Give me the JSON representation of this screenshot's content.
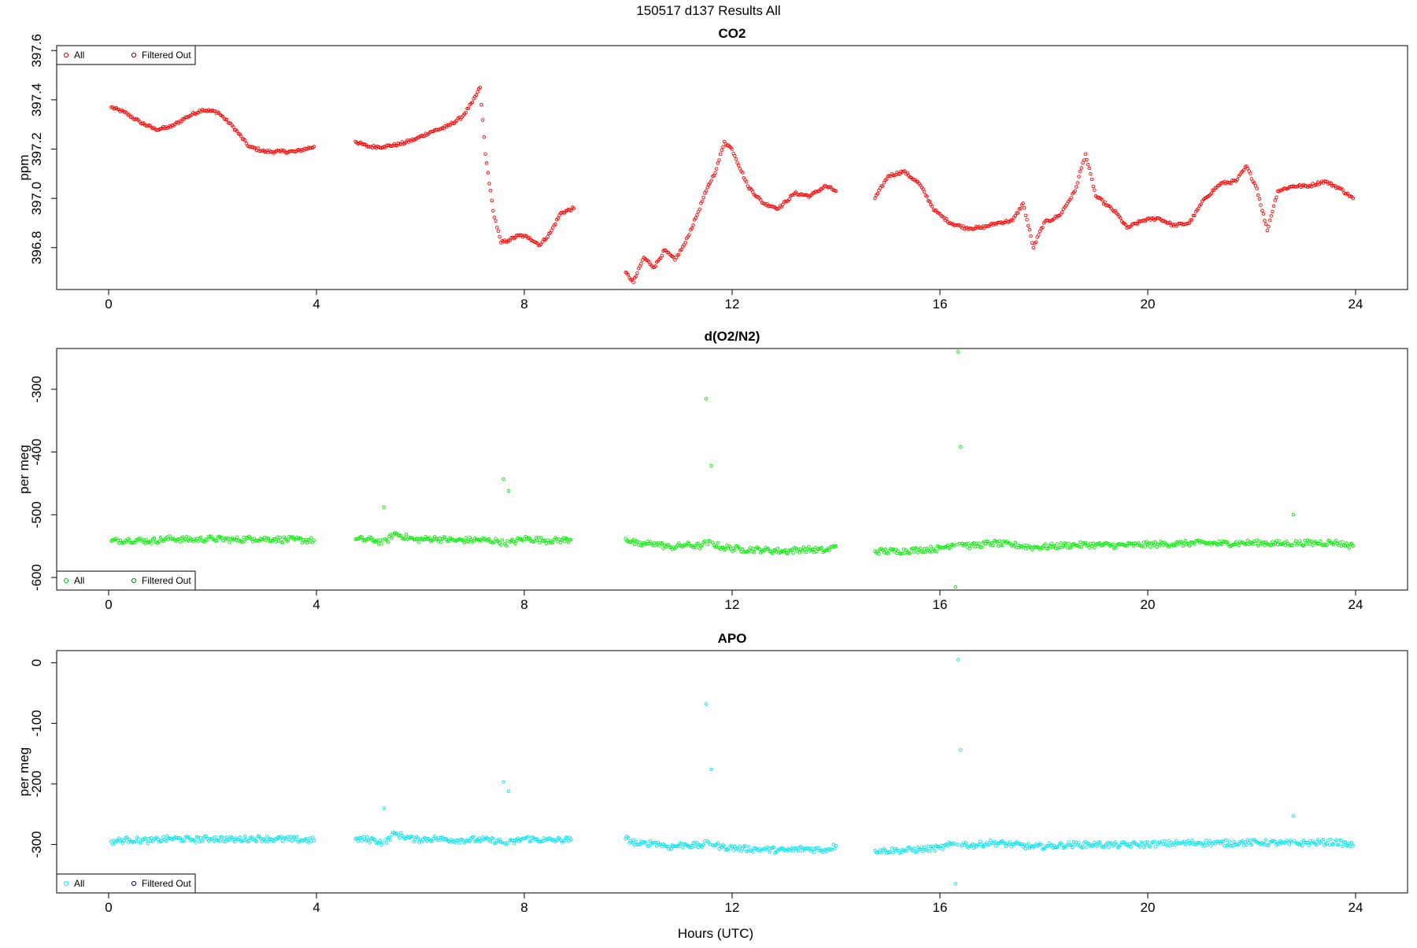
{
  "figure": {
    "title": "150517   d137   Results All",
    "xlabel": "Hours (UTC)"
  },
  "chart_data": [
    {
      "type": "scatter",
      "title": "CO2",
      "ylabel": "ppm",
      "xlim": [
        -1.0,
        25.0
      ],
      "ylim": [
        396.63,
        397.62
      ],
      "xticks": [
        0,
        4,
        8,
        12,
        16,
        20,
        24
      ],
      "yticks": [
        396.8,
        397.0,
        397.2,
        397.4,
        397.6
      ],
      "ytick_labels": [
        "396.8",
        "397.0",
        "397.2",
        "397.4",
        "397.6"
      ],
      "grid": false,
      "legend_position": "top-left",
      "legend": [
        {
          "label": "All",
          "color": "#ff0000"
        },
        {
          "label": "Filtered Out",
          "color": "#8b0000"
        }
      ],
      "series": [
        {
          "name": "All",
          "color": "#ff0000",
          "x": [
            0.05,
            0.3,
            0.6,
            0.9,
            1.2,
            1.5,
            1.8,
            2.1,
            2.4,
            2.7,
            3.0,
            3.3,
            3.6,
            3.95,
            4.75,
            5.0,
            5.3,
            5.6,
            5.9,
            6.2,
            6.5,
            6.8,
            7.0,
            7.15,
            7.25,
            7.4,
            7.55,
            7.7,
            7.9,
            8.1,
            8.3,
            8.5,
            8.7,
            8.95,
            9.95,
            10.1,
            10.3,
            10.5,
            10.7,
            10.9,
            11.1,
            11.3,
            11.5,
            11.7,
            11.85,
            12.0,
            12.3,
            12.6,
            12.9,
            13.2,
            13.5,
            13.8,
            14.0,
            14.75,
            15.0,
            15.3,
            15.6,
            15.9,
            16.2,
            16.5,
            16.8,
            17.1,
            17.4,
            17.6,
            17.8,
            18.0,
            18.3,
            18.6,
            18.8,
            19.0,
            19.4,
            19.6,
            19.9,
            20.2,
            20.5,
            20.8,
            21.1,
            21.4,
            21.7,
            21.9,
            22.1,
            22.3,
            22.5,
            22.8,
            23.1,
            23.4,
            23.7,
            23.95
          ],
          "y": [
            397.37,
            397.35,
            397.31,
            397.28,
            397.29,
            397.33,
            397.36,
            397.35,
            397.29,
            397.21,
            397.19,
            397.19,
            397.19,
            397.21,
            397.23,
            397.21,
            397.21,
            397.22,
            397.24,
            397.27,
            397.29,
            397.33,
            397.39,
            397.45,
            397.18,
            396.95,
            396.82,
            396.83,
            396.85,
            396.84,
            396.81,
            396.86,
            396.94,
            396.96,
            396.7,
            396.66,
            396.76,
            396.72,
            396.79,
            396.75,
            396.82,
            396.92,
            397.03,
            397.12,
            397.23,
            397.2,
            397.05,
            396.98,
            396.96,
            397.02,
            397.01,
            397.05,
            397.03,
            397.0,
            397.09,
            397.11,
            397.06,
            396.95,
            396.9,
            396.88,
            396.88,
            396.9,
            396.91,
            396.98,
            396.8,
            396.9,
            396.93,
            397.03,
            397.18,
            397.01,
            396.94,
            396.88,
            396.91,
            396.92,
            396.89,
            396.9,
            397.0,
            397.06,
            397.07,
            397.13,
            397.04,
            396.87,
            397.03,
            397.05,
            397.05,
            397.07,
            397.04,
            397.0
          ]
        }
      ]
    },
    {
      "type": "scatter",
      "title": "d(O2/N2)",
      "ylabel": "per meg",
      "xlim": [
        -1.0,
        25.0
      ],
      "ylim": [
        -620,
        -235
      ],
      "xticks": [
        0,
        4,
        8,
        12,
        16,
        20,
        24
      ],
      "yticks": [
        -600,
        -500,
        -400,
        -300
      ],
      "ytick_labels": [
        "-600",
        "-500",
        "-400",
        "-300"
      ],
      "grid": false,
      "legend_position": "bottom-left",
      "legend": [
        {
          "label": "All",
          "color": "#00dd00"
        },
        {
          "label": "Filtered Out",
          "color": "#008800"
        }
      ],
      "series": [
        {
          "name": "All",
          "color": "#00ee00",
          "x": [
            0.05,
            0.4,
            0.8,
            1.2,
            1.6,
            2.0,
            2.4,
            2.8,
            3.2,
            3.6,
            3.95,
            4.75,
            5.1,
            5.3,
            5.5,
            5.9,
            6.3,
            6.7,
            7.1,
            7.5,
            7.6,
            7.7,
            8.0,
            8.4,
            8.9,
            9.95,
            10.2,
            10.5,
            10.8,
            11.1,
            11.4,
            11.5,
            11.6,
            11.8,
            12.2,
            12.6,
            13.0,
            13.4,
            13.8,
            14.0,
            14.75,
            15.2,
            15.6,
            16.0,
            16.3,
            16.35,
            16.4,
            16.6,
            17.0,
            17.4,
            17.8,
            18.2,
            18.6,
            19.0,
            19.4,
            19.8,
            20.2,
            20.6,
            21.0,
            21.4,
            21.8,
            22.2,
            22.6,
            22.8,
            23.2,
            23.6,
            23.95
          ],
          "y": [
            -542,
            -540,
            -542,
            -538,
            -540,
            -538,
            -540,
            -538,
            -539,
            -540,
            -541,
            -539,
            -540,
            -488,
            -530,
            -540,
            -538,
            -541,
            -540,
            -542,
            -443,
            -462,
            -538,
            -541,
            -540,
            -538,
            -548,
            -545,
            -552,
            -548,
            -550,
            -315,
            -422,
            -552,
            -555,
            -556,
            -558,
            -555,
            -557,
            -550,
            -558,
            -558,
            -556,
            -554,
            -615,
            -240,
            -392,
            -550,
            -545,
            -548,
            -552,
            -550,
            -548,
            -548,
            -549,
            -548,
            -547,
            -546,
            -545,
            -546,
            -545,
            -545,
            -546,
            -500,
            -545,
            -544,
            -550
          ]
        }
      ]
    },
    {
      "type": "scatter",
      "title": "APO",
      "ylabel": "per meg",
      "xlim": [
        -1.0,
        25.0
      ],
      "ylim": [
        -380,
        20
      ],
      "xticks": [
        0,
        4,
        8,
        12,
        16,
        20,
        24
      ],
      "yticks": [
        -300,
        -200,
        -100,
        0
      ],
      "ytick_labels": [
        "-300",
        "-200",
        "-100",
        "0"
      ],
      "grid": false,
      "legend_position": "bottom-left",
      "legend": [
        {
          "label": "All",
          "color": "#00ffff"
        },
        {
          "label": "Filtered Out",
          "color": "#00008b"
        }
      ],
      "series": [
        {
          "name": "All",
          "color": "#00e5ee",
          "x": [
            0.05,
            0.4,
            0.8,
            1.2,
            1.6,
            2.0,
            2.4,
            2.8,
            3.2,
            3.6,
            3.95,
            4.75,
            5.1,
            5.3,
            5.5,
            5.9,
            6.3,
            6.7,
            7.1,
            7.5,
            7.6,
            7.7,
            8.0,
            8.4,
            8.9,
            9.95,
            10.2,
            10.5,
            10.8,
            11.1,
            11.4,
            11.5,
            11.6,
            11.8,
            12.2,
            12.6,
            13.0,
            13.4,
            13.8,
            14.0,
            14.75,
            15.2,
            15.6,
            16.0,
            16.3,
            16.35,
            16.4,
            16.6,
            17.0,
            17.4,
            17.8,
            18.2,
            18.6,
            19.0,
            19.4,
            19.8,
            20.2,
            20.6,
            21.0,
            21.4,
            21.8,
            22.2,
            22.6,
            22.8,
            23.2,
            23.6,
            23.95
          ],
          "y": [
            -295,
            -292,
            -294,
            -290,
            -292,
            -290,
            -292,
            -290,
            -291,
            -292,
            -293,
            -291,
            -292,
            -240,
            -282,
            -292,
            -290,
            -293,
            -292,
            -294,
            -197,
            -212,
            -290,
            -293,
            -292,
            -290,
            -300,
            -297,
            -304,
            -300,
            -302,
            -68,
            -176,
            -304,
            -307,
            -308,
            -310,
            -307,
            -309,
            -302,
            -310,
            -310,
            -308,
            -306,
            -365,
            5,
            -144,
            -302,
            -297,
            -300,
            -304,
            -302,
            -300,
            -300,
            -301,
            -300,
            -299,
            -298,
            -297,
            -298,
            -297,
            -297,
            -298,
            -253,
            -297,
            -296,
            -302
          ]
        }
      ]
    }
  ]
}
